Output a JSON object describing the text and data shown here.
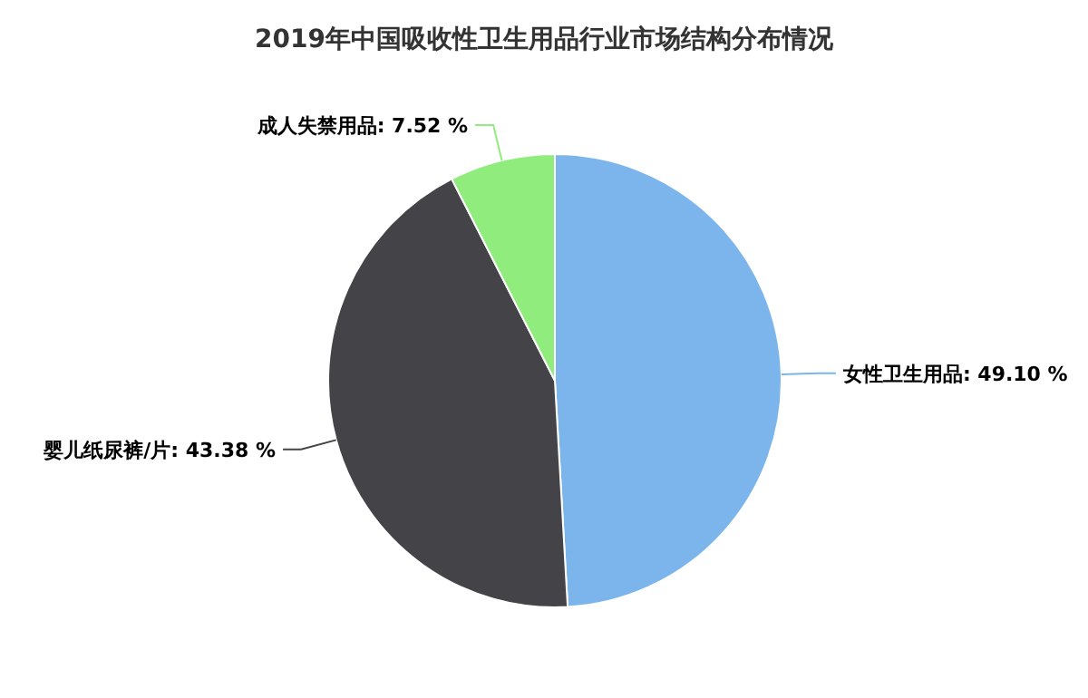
{
  "chart_data": {
    "type": "pie",
    "title": "2019年中国吸收性卫生用品行业市场结构分布情况",
    "categories": [
      "女性卫生用品",
      "婴儿纸尿裤/片",
      "成人失禁用品"
    ],
    "values": [
      49.1,
      43.38,
      7.52
    ],
    "value_labels": [
      "49.10 %",
      "43.38 %",
      "7.52 %"
    ],
    "colors": [
      "#7cb5ec",
      "#434348",
      "#90ed7d"
    ]
  }
}
